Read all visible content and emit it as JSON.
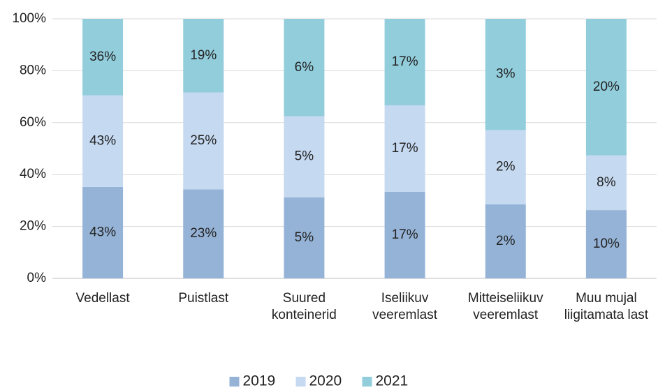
{
  "chart_data": {
    "type": "bar",
    "stacking": "percent",
    "categories": [
      "Vedellast",
      "Puistlast",
      "Suured konteinerid",
      "Iseliikuv veeremlast",
      "Mitteiseliikuv veeremlast",
      "Muu mujal liigitamata last"
    ],
    "series": [
      {
        "name": "2019",
        "color": "#95b3d7",
        "values": [
          43,
          23,
          5,
          17,
          2,
          10
        ],
        "value_labels": [
          "43%",
          "23%",
          "5%",
          "17%",
          "2%",
          "10%"
        ]
      },
      {
        "name": "2020",
        "color": "#c5d9f1",
        "values": [
          43,
          25,
          5,
          17,
          2,
          8
        ],
        "value_labels": [
          "43%",
          "25%",
          "5%",
          "17%",
          "2%",
          "8%"
        ]
      },
      {
        "name": "2021",
        "color": "#92cddc",
        "values": [
          36,
          19,
          6,
          17,
          3,
          20
        ],
        "value_labels": [
          "36%",
          "19%",
          "6%",
          "17%",
          "3%",
          "20%"
        ]
      }
    ],
    "ylim": [
      0,
      100
    ],
    "yticks": [
      {
        "value": 0,
        "label": "0%"
      },
      {
        "value": 20,
        "label": "20%"
      },
      {
        "value": 40,
        "label": "40%"
      },
      {
        "value": 60,
        "label": "60%"
      },
      {
        "value": 80,
        "label": "80%"
      },
      {
        "value": 100,
        "label": "100%"
      }
    ],
    "grid": true,
    "legend": "bottom"
  }
}
